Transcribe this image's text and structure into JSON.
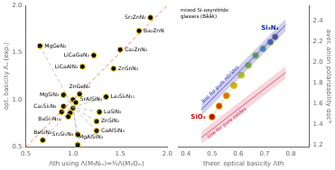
{
  "chart_data": [
    {
      "type": "scatter",
      "xlabel": "Λth using Λ(M₃Nₘ)=³⁄₂Λ(M₂Oₘ)",
      "ylabel": "opt. basicity Λₙ (exp.)",
      "xlim": [
        0.5,
        2.0
      ],
      "ylim": [
        0.5,
        2.0
      ],
      "xticks": [
        0.5,
        {
          "value": 1.0,
          "label": "1.0"
        },
        1.5,
        {
          "value": 2.0,
          "label": "2.0"
        }
      ],
      "yticks": [
        0.5,
        {
          "value": 1.0,
          "label": "1.0"
        },
        1.5,
        {
          "value": 2.0,
          "label": "2.0"
        }
      ],
      "grid": false,
      "series": [
        {
          "type": "line",
          "x": [
            0.5,
            2.0
          ],
          "values": [
            0.5,
            2.0
          ],
          "color": "#f08060",
          "line_style": "dashed"
        },
        {
          "type": "connectors",
          "from": [
            [
              0.65,
              1.57
            ],
            [
              0.9,
              1.05
            ],
            [
              0.9,
              0.93
            ],
            [
              0.88,
              0.87
            ],
            [
              0.68,
              0.57
            ],
            [
              1.35,
              1.03
            ],
            [
              1.28,
              0.87
            ],
            [
              1.25,
              0.77
            ],
            [
              1.25,
              0.67
            ],
            [
              1.05,
              0.63
            ],
            [
              1.05,
              0.52
            ]
          ],
          "to": [
            1.0,
            0.92
          ],
          "color": "#999999",
          "line_style": "dashed"
        },
        {
          "type": "scatter",
          "x": [
            0.65,
            0.9,
            0.9,
            0.88,
            0.68,
            1.0,
            1.07,
            1.03,
            1.0,
            0.97,
            0.95,
            1.1,
            1.22,
            1.5,
            1.43,
            1.7,
            1.82,
            1.35,
            1.28,
            1.25,
            1.25,
            1.05,
            1.05
          ],
          "values": [
            1.57,
            1.05,
            0.93,
            0.87,
            0.57,
            1.0,
            1.06,
            0.97,
            0.91,
            0.86,
            0.82,
            1.35,
            1.47,
            1.53,
            1.33,
            1.73,
            1.87,
            1.03,
            0.87,
            0.77,
            0.67,
            0.63,
            0.52
          ],
          "point_labels": [
            "MgGeN₂",
            "MgSiN₂",
            "Ca₂Si₅N₈",
            "BaSi₇N₁₀",
            "BeSiN₂",
            "SrAlSiN₃",
            "ZnGeN₂",
            null,
            null,
            null,
            null,
            "LiCaAlN₂",
            "LiCaGaN₂",
            "Ca₂ZnN₂",
            "ZnSnN₂",
            "Ba₂ZnN",
            "Sr₂ZnN₂",
            "La₃Si₆N₁₁",
            "LaSiN₂",
            "ZnSiN₂",
            "CaAlSiN₃",
            "Sr₂Si₅N₈",
            "MgAlSiN₃"
          ],
          "color": "black",
          "edge_color": "#f5d800",
          "marker": "circle"
        }
      ]
    },
    {
      "type": "scatter",
      "xlabel": "theor. optical basicity Λth",
      "y2label": "aver. anion polarizability αᴏᴄᴺ",
      "xlim": [
        0.37,
        0.87
      ],
      "y2lim": [
        1.18,
        2.55
      ],
      "xticks": [
        0.4,
        0.5,
        0.6,
        0.7,
        0.8
      ],
      "y2ticks": [
        1.2,
        1.4,
        1.6,
        1.8,
        {
          "value": 2.0,
          "label": "2.0"
        },
        2.2,
        2.4
      ],
      "grid": false,
      "series": [
        {
          "type": "band",
          "axis": "y2",
          "x": [
            0.46,
            0.78
          ],
          "lower": [
            1.48,
            2.3
          ],
          "upper": [
            1.6,
            2.42
          ],
          "color": "#8888dd"
        },
        {
          "type": "band",
          "axis": "y2",
          "x": [
            0.46,
            0.78
          ],
          "lower": [
            1.21,
            1.84
          ],
          "upper": [
            1.33,
            1.96
          ],
          "color": "#ee99aa"
        },
        {
          "type": "line",
          "axis": "y2",
          "x": [
            0.46,
            0.78
          ],
          "values": [
            1.54,
            2.36
          ],
          "color": "#4444bb",
          "label": "line for pure nitrides",
          "label_color": "#2222aa"
        },
        {
          "type": "line",
          "axis": "y2",
          "x": [
            0.46,
            0.78
          ],
          "values": [
            1.27,
            1.9
          ],
          "color": "#cc3366",
          "label": "line for pure oxides",
          "label_color": "#cc2244"
        },
        {
          "type": "scatter",
          "axis": "y2",
          "x": [
            0.5,
            0.527,
            0.555,
            0.583,
            0.611,
            0.638,
            0.666,
            0.694,
            0.722,
            0.74
          ],
          "values": [
            1.47,
            1.575,
            1.675,
            1.775,
            1.875,
            1.97,
            2.065,
            2.13,
            2.195,
            2.245
          ],
          "colors": [
            "#cc0000",
            "#dd3300",
            "#ee6600",
            "#ddaa00",
            "#aacc00",
            "#55bb00",
            "#22aa44",
            "#0088cc",
            "#0044cc",
            "#0022aa"
          ],
          "edge_color": "#cccc00",
          "marker": "circle",
          "line_style": "dotted",
          "line_color": "#777777",
          "end_labels": [
            {
              "text": "SiO₂",
              "color": "#cc0000"
            },
            {
              "text": "Si₃N₄",
              "color": "#0022aa"
            }
          ]
        }
      ],
      "annotations": [
        {
          "text": "mixed Si-oxynitride\nglasses (Bååk)",
          "color": "black"
        }
      ]
    }
  ]
}
